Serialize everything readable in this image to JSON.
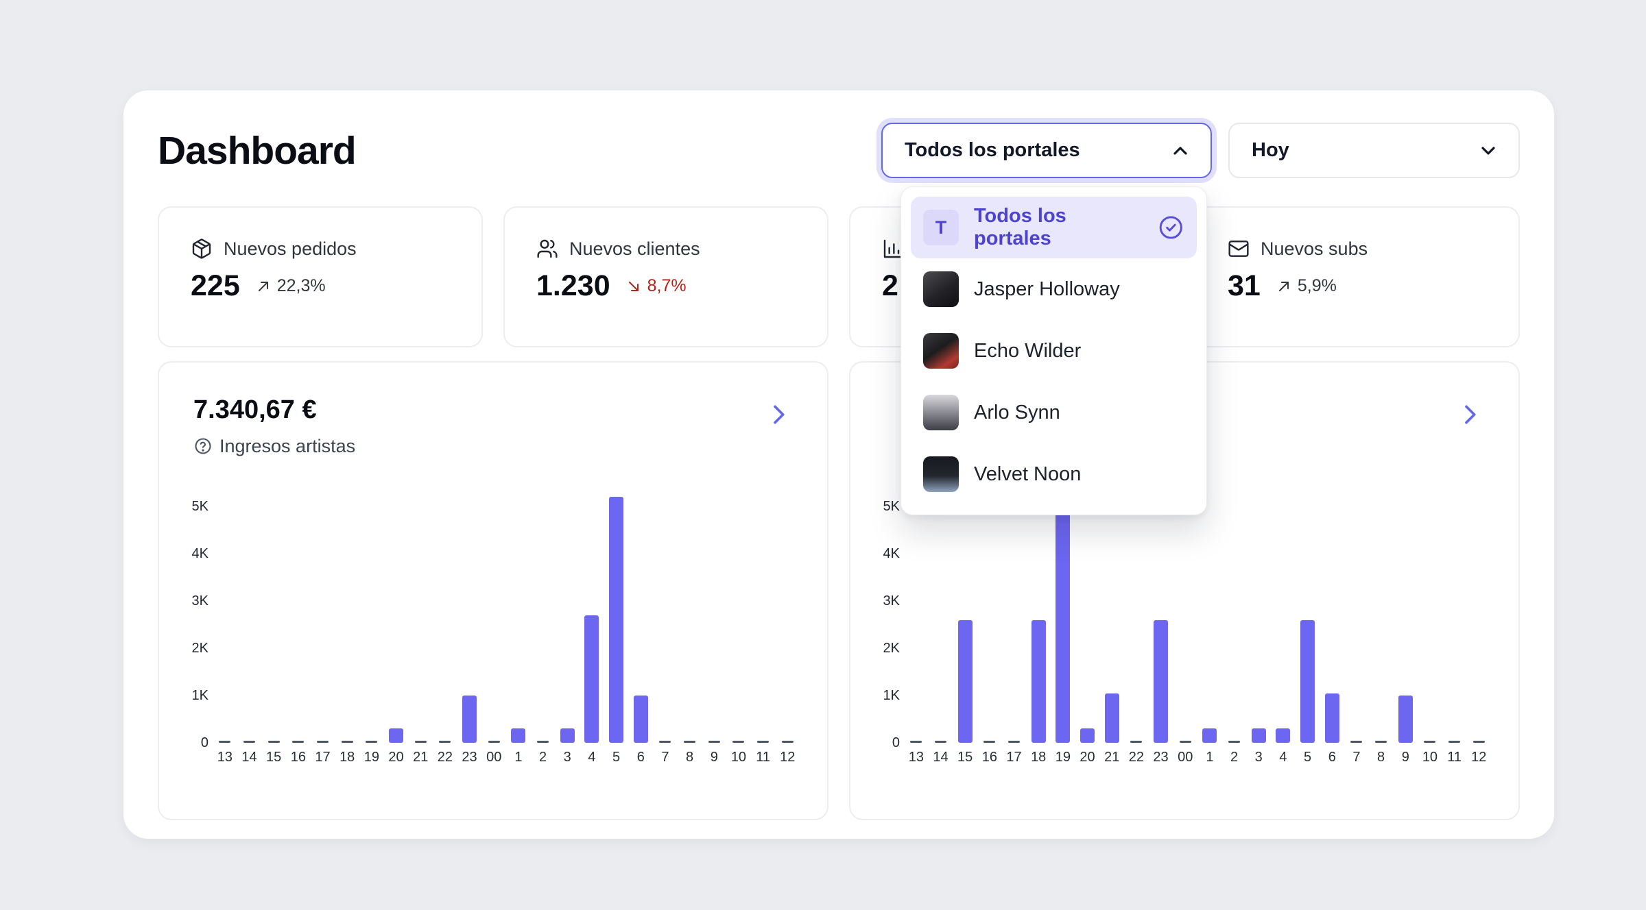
{
  "page": {
    "title": "Dashboard"
  },
  "filters": {
    "portal_select": {
      "value": "Todos los portales",
      "state": "open"
    },
    "date_select": {
      "value": "Hoy",
      "state": "closed"
    }
  },
  "portal_menu": {
    "items": [
      {
        "label": "Todos los portales",
        "avatar_text": "T",
        "selected": true
      },
      {
        "label": "Jasper Holloway",
        "selected": false
      },
      {
        "label": "Echo Wilder",
        "selected": false
      },
      {
        "label": "Arlo Synn",
        "selected": false
      },
      {
        "label": "Velvet Noon",
        "selected": false
      }
    ]
  },
  "stats": [
    {
      "label": "Nuevos pedidos",
      "value": "225",
      "trend": "22,3%",
      "trend_direction": "up",
      "icon": "package-icon"
    },
    {
      "label": "Nuevos clientes",
      "value": "1.230",
      "trend": "8,7%",
      "trend_direction": "down",
      "icon": "users-icon"
    },
    {
      "label": "",
      "value": "2",
      "trend": "",
      "trend_direction": "",
      "icon": "bar-chart-icon"
    },
    {
      "label": "Nuevos subs",
      "value": "31",
      "trend": "5,9%",
      "trend_direction": "up",
      "icon": "mail-icon"
    }
  ],
  "colors": {
    "accent": "#6366f1",
    "bar": "#6c66f0",
    "negative": "#b42318",
    "menu_selected_bg": "#e9e7fc",
    "page_bg": "#ebecef"
  },
  "icons": {
    "portal_select": "chevron-up",
    "date_select": "chevron-down",
    "chart_link": "chevron-right",
    "subtitle_help": "help-circle",
    "selected_item": "check-circle"
  },
  "chart_data": [
    {
      "type": "bar",
      "title": "7.340,67 €",
      "subtitle": "Ingresos artistas",
      "x": [
        "13",
        "14",
        "15",
        "16",
        "17",
        "18",
        "19",
        "20",
        "21",
        "22",
        "23",
        "00",
        "1",
        "2",
        "3",
        "4",
        "5",
        "6",
        "7",
        "8",
        "9",
        "10",
        "11",
        "12"
      ],
      "values": [
        0,
        0,
        0,
        0,
        0,
        0,
        0,
        300,
        0,
        0,
        1000,
        0,
        300,
        0,
        300,
        2700,
        5200,
        1000,
        0,
        0,
        0,
        0,
        0,
        0
      ],
      "yticks": [
        "0",
        "1K",
        "2K",
        "3K",
        "4K",
        "5K"
      ],
      "ylim": [
        0,
        5500
      ],
      "grid": false,
      "legend": false
    },
    {
      "type": "bar",
      "title": "",
      "subtitle": "",
      "x": [
        "13",
        "14",
        "15",
        "16",
        "17",
        "18",
        "19",
        "20",
        "21",
        "22",
        "23",
        "00",
        "1",
        "2",
        "3",
        "4",
        "5",
        "6",
        "7",
        "8",
        "9",
        "10",
        "11",
        "12"
      ],
      "values": [
        0,
        0,
        2600,
        0,
        0,
        2600,
        5500,
        300,
        1050,
        0,
        2600,
        0,
        300,
        0,
        300,
        300,
        2600,
        1050,
        0,
        0,
        1000,
        0,
        0,
        0
      ],
      "yticks": [
        "0",
        "1K",
        "2K",
        "3K",
        "4K",
        "5K"
      ],
      "ylim": [
        0,
        5500
      ],
      "grid": false,
      "legend": false
    }
  ]
}
